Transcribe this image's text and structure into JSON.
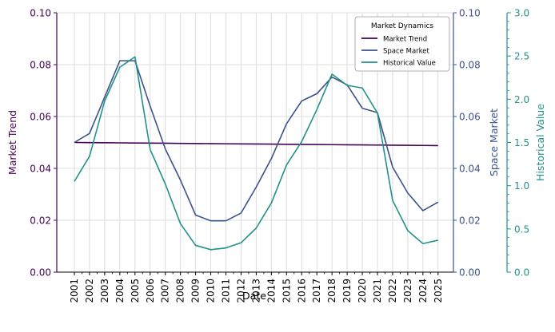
{
  "chart_data": {
    "type": "line",
    "xlabel": "Date",
    "categories": [
      "2001",
      "2002",
      "2003",
      "2004",
      "2005",
      "2006",
      "2007",
      "2008",
      "2009",
      "2010",
      "2011",
      "2012",
      "2013",
      "2014",
      "2015",
      "2016",
      "2017",
      "2018",
      "2019",
      "2020",
      "2021",
      "2022",
      "2023",
      "2024",
      "2025"
    ],
    "axes": {
      "left": {
        "label": "Market Trend",
        "ylim": [
          0,
          0.1
        ],
        "ticks": [
          "0.00",
          "0.02",
          "0.04",
          "0.06",
          "0.08",
          "0.10"
        ],
        "color": "#440154"
      },
      "right1": {
        "label": "Space Market",
        "ylim": [
          0,
          0.1
        ],
        "ticks": [
          "0.00",
          "0.02",
          "0.04",
          "0.06",
          "0.08",
          "0.10"
        ],
        "color": "#3b528b"
      },
      "right2": {
        "label": "Historical Value",
        "ylim": [
          0,
          3.0
        ],
        "ticks": [
          "0.0",
          "0.5",
          "1.0",
          "1.5",
          "2.0",
          "2.5",
          "3.0"
        ],
        "color": "#21918c"
      }
    },
    "series": [
      {
        "name": "Market Trend",
        "axis": "left",
        "color": "#440154",
        "values": [
          0.05,
          0.04995,
          0.0499,
          0.04985,
          0.0498,
          0.04975,
          0.0497,
          0.04965,
          0.0496,
          0.04955,
          0.0495,
          0.04945,
          0.0494,
          0.04935,
          0.0493,
          0.04925,
          0.0492,
          0.04915,
          0.0491,
          0.04905,
          0.049,
          0.04895,
          0.0489,
          0.04885,
          0.0488
        ]
      },
      {
        "name": "Space Market",
        "axis": "right1",
        "color": "#3b528b",
        "values": [
          0.05,
          0.0535,
          0.0675,
          0.0815,
          0.0815,
          0.064,
          0.0475,
          0.0355,
          0.022,
          0.0198,
          0.0198,
          0.0228,
          0.0328,
          0.0438,
          0.0572,
          0.066,
          0.0688,
          0.0752,
          0.0722,
          0.0632,
          0.0615,
          0.0405,
          0.0305,
          0.0237,
          0.027
        ]
      },
      {
        "name": "Historical Value",
        "axis": "right2",
        "color": "#21918c",
        "values": [
          1.05,
          1.34,
          1.98,
          2.37,
          2.49,
          1.42,
          1.02,
          0.56,
          0.31,
          0.26,
          0.28,
          0.34,
          0.51,
          0.8,
          1.24,
          1.51,
          1.88,
          2.29,
          2.16,
          2.13,
          1.84,
          0.83,
          0.48,
          0.33,
          0.37
        ]
      }
    ],
    "legend": {
      "title": "Market Dynamics",
      "placement": "top-right"
    },
    "grid": true
  }
}
